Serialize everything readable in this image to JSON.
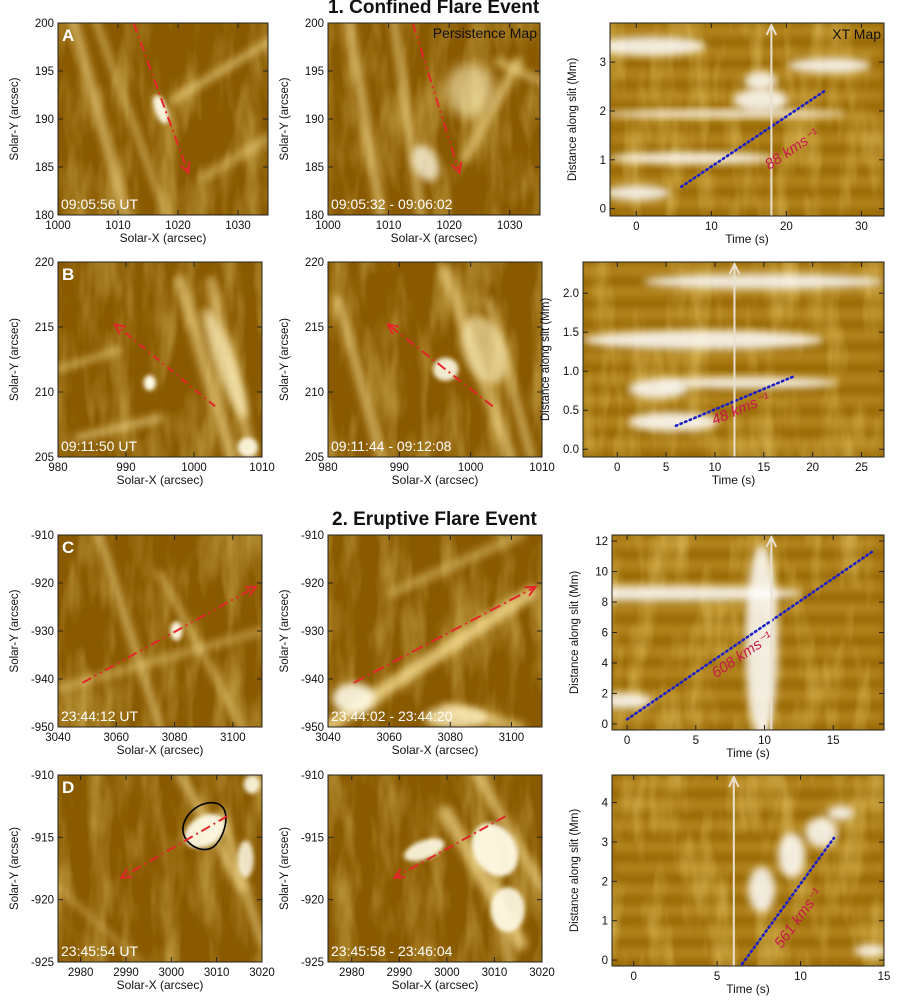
{
  "sections": [
    {
      "title": "1. Confined Flare Event"
    },
    {
      "title": "2. Eruptive Flare Event"
    }
  ],
  "common": {
    "xlabel": "Solar-X (arcsec)",
    "ylabel": "Solar-Y (arcsec)",
    "xt_xlabel": "Time (s)",
    "xt_ylabel": "Distance along slit (Mm)",
    "persistence_tag": "Persistence Map",
    "xt_tag": "XT Map"
  },
  "rows": [
    {
      "letter": "A",
      "snapshot": {
        "timestamp": "09:05:56 UT",
        "xticks": [
          1000,
          1010,
          1020,
          1030
        ],
        "yticks": [
          180,
          185,
          190,
          195,
          200
        ],
        "xlim": [
          1000,
          1035
        ],
        "ylim": [
          180,
          200
        ]
      },
      "persistence": {
        "timestamp": "09:05:32 - 09:06:02",
        "xticks": [
          1000,
          1010,
          1020,
          1030
        ],
        "yticks": [
          180,
          185,
          190,
          195,
          200
        ],
        "xlim": [
          1000,
          1035
        ],
        "ylim": [
          180,
          200
        ]
      },
      "xt": {
        "speed_text": "88 kms⁻¹",
        "xticks": [
          0,
          10,
          20,
          30
        ],
        "yticks": [
          0,
          1,
          2,
          3
        ],
        "xlim": [
          -3.5,
          33
        ],
        "ylim": [
          -0.15,
          3.8
        ],
        "fit_line": [
          [
            6,
            0.45
          ],
          [
            25,
            2.4
          ]
        ],
        "time_marker": 18
      }
    },
    {
      "letter": "B",
      "snapshot": {
        "timestamp": "09:11:50 UT",
        "xticks": [
          980,
          990,
          1000,
          1010
        ],
        "yticks": [
          205,
          210,
          215,
          220
        ],
        "xlim": [
          980,
          1010
        ],
        "ylim": [
          205,
          220
        ]
      },
      "persistence": {
        "timestamp": "09:11:44 - 09:12:08",
        "xticks": [
          980,
          990,
          1000,
          1010
        ],
        "yticks": [
          205,
          210,
          215,
          220
        ],
        "xlim": [
          980,
          1010
        ],
        "ylim": [
          205,
          220
        ]
      },
      "xt": {
        "speed_text": "48 kms⁻¹",
        "xticks": [
          0,
          5,
          10,
          15,
          20,
          25
        ],
        "yticks": [
          0.0,
          0.5,
          1.0,
          1.5,
          2.0
        ],
        "xlim": [
          -3.5,
          27.3
        ],
        "ylim": [
          -0.1,
          2.4
        ],
        "fit_line": [
          [
            6,
            0.3
          ],
          [
            18,
            0.93
          ]
        ],
        "time_marker": 12
      }
    },
    {
      "letter": "C",
      "snapshot": {
        "timestamp": "23:44:12 UT",
        "xticks": [
          3040,
          3060,
          3080,
          3100
        ],
        "yticks": [
          -950,
          -940,
          -930,
          -920,
          -910
        ],
        "xlim": [
          3040,
          3110
        ],
        "ylim": [
          -950,
          -910
        ]
      },
      "persistence": {
        "timestamp": "23:44:02 - 23:44:20",
        "xticks": [
          3040,
          3060,
          3080,
          3100
        ],
        "yticks": [
          -950,
          -940,
          -930,
          -920,
          -910
        ],
        "xlim": [
          3040,
          3110
        ],
        "ylim": [
          -950,
          -910
        ]
      },
      "xt": {
        "speed_text": "608 kms⁻¹",
        "xticks": [
          0,
          5,
          10,
          15
        ],
        "yticks": [
          0,
          2,
          4,
          6,
          8,
          10,
          12
        ],
        "xlim": [
          -1.1,
          18.7
        ],
        "ylim": [
          -0.4,
          12.4
        ],
        "fit_line": [
          [
            0,
            0.3
          ],
          [
            18,
            11.4
          ]
        ],
        "time_marker": 10.5
      }
    },
    {
      "letter": "D",
      "snapshot": {
        "timestamp": "23:45:54 UT",
        "xticks": [
          2980,
          2990,
          3000,
          3010,
          3020
        ],
        "yticks": [
          -925,
          -920,
          -915,
          -910
        ],
        "xlim": [
          2975,
          3020
        ],
        "ylim": [
          -925,
          -910
        ]
      },
      "persistence": {
        "timestamp": "23:45:58 - 23:46:04",
        "xticks": [
          2980,
          2990,
          3000,
          3010,
          3020
        ],
        "yticks": [
          -925,
          -920,
          -915,
          -910
        ],
        "xlim": [
          2975,
          3020
        ],
        "ylim": [
          -925,
          -910
        ]
      },
      "xt": {
        "speed_text": "561 kms⁻¹",
        "xticks": [
          0,
          5,
          10,
          15
        ],
        "yticks": [
          0,
          1,
          2,
          3,
          4
        ],
        "xlim": [
          -1.3,
          15
        ],
        "ylim": [
          -0.15,
          4.7
        ],
        "fit_line": [
          [
            6.5,
            -0.1
          ],
          [
            12,
            3.1
          ]
        ],
        "time_marker": 6
      }
    }
  ]
}
